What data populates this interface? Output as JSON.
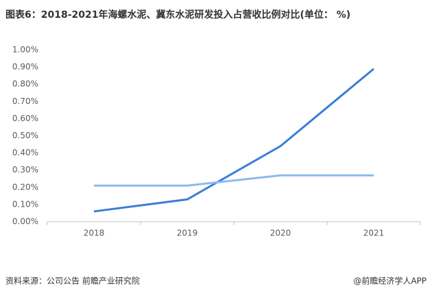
{
  "chart_data": {
    "type": "line",
    "title": "图表6：2018-2021年海螺水泥、冀东水泥研发投入占营收比例对比(单位： %)",
    "categories": [
      "2018",
      "2019",
      "2020",
      "2021"
    ],
    "series": [
      {
        "color": "#3b7dd8",
        "values": [
          0.06,
          0.13,
          0.44,
          0.89
        ]
      },
      {
        "color": "#8fb8ee",
        "values": [
          0.21,
          0.21,
          0.27,
          0.27
        ]
      }
    ],
    "ylim": [
      0,
      1
    ],
    "yticks": [
      {
        "value": 0,
        "label": "0.00%"
      },
      {
        "value": 0.1,
        "label": "0.10%"
      },
      {
        "value": 0.2,
        "label": "0.20%"
      },
      {
        "value": 0.3,
        "label": "0.30%"
      },
      {
        "value": 0.4,
        "label": "0.40%"
      },
      {
        "value": 0.5,
        "label": "0.50%"
      },
      {
        "value": 0.6,
        "label": "0.60%"
      },
      {
        "value": 0.7,
        "label": "0.70%"
      },
      {
        "value": 0.8,
        "label": "0.80%"
      },
      {
        "value": 0.9,
        "label": "0.90%"
      },
      {
        "value": 1,
        "label": "1.00%"
      }
    ],
    "grid": false,
    "source": "资料来源：公司公告 前瞻产业研究院",
    "credit": "@前瞻经济学人APP"
  }
}
